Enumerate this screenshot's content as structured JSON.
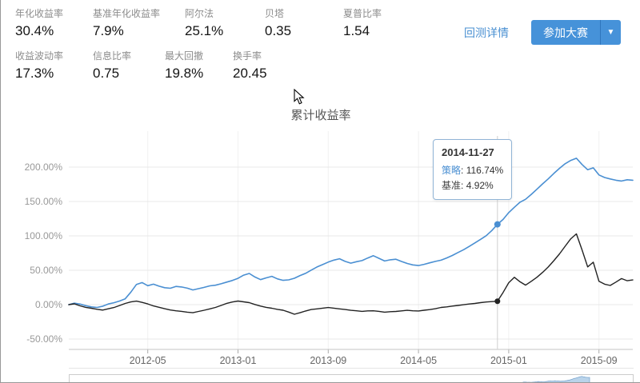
{
  "metrics": {
    "row1": [
      {
        "label": "年化收益率",
        "value": "30.4%"
      },
      {
        "label": "基准年化收益率",
        "value": "7.9%"
      },
      {
        "label": "阿尔法",
        "value": "25.1%"
      },
      {
        "label": "贝塔",
        "value": "0.35"
      },
      {
        "label": "夏普比率",
        "value": "1.54"
      }
    ],
    "row2": [
      {
        "label": "收益波动率",
        "value": "17.3%"
      },
      {
        "label": "信息比率",
        "value": "0.75"
      },
      {
        "label": "最大回撤",
        "value": "19.8%"
      },
      {
        "label": "换手率",
        "value": "20.45"
      }
    ]
  },
  "header": {
    "backtest_details_link": "回测详情",
    "join_competition_button": "参加大赛",
    "caret_icon": "▼"
  },
  "colors": {
    "strategy_blue": "#4a8fd2",
    "benchmark_black": "#222222",
    "accent_blue": "#4692d9",
    "link_blue": "#4a90d2"
  },
  "chart_data": {
    "type": "line",
    "title": "累计收益率",
    "grid": true,
    "legend_position": "none",
    "t_start": 0,
    "t_end": 50,
    "t_step": 0.5,
    "t_unit": "months-from-2011-10",
    "ylim": [
      -65,
      250
    ],
    "y_ticks": [
      {
        "label": "200.00%",
        "value": 200
      },
      {
        "label": "150.00%",
        "value": 150
      },
      {
        "label": "100.00%",
        "value": 100
      },
      {
        "label": "50.00%",
        "value": 50
      },
      {
        "label": "0.00%",
        "value": 0
      },
      {
        "label": "-50.00%",
        "value": -50
      }
    ],
    "x_ticks": [
      {
        "label": "2012-05",
        "t": 7
      },
      {
        "label": "2013-01",
        "t": 15
      },
      {
        "label": "2013-09",
        "t": 23
      },
      {
        "label": "2014-05",
        "t": 31
      },
      {
        "label": "2015-01",
        "t": 39
      },
      {
        "label": "2015-09",
        "t": 47
      }
    ],
    "series": [
      {
        "name": "策略",
        "color": "#4a8fd2",
        "width": 1.6,
        "values": [
          0,
          2.1,
          0.8,
          -1.5,
          -3.2,
          -4.1,
          -2.3,
          0.9,
          2.8,
          5.2,
          8.5,
          18.3,
          29.4,
          32.1,
          27.6,
          29.8,
          26.9,
          24.7,
          23.8,
          26.5,
          25.7,
          23.9,
          21.4,
          23.2,
          25.1,
          27.3,
          28.2,
          30.4,
          32.8,
          35.1,
          38.2,
          42.9,
          45.3,
          40.2,
          36.4,
          38.9,
          41.2,
          37.5,
          35.3,
          36.1,
          38.4,
          42.3,
          45.6,
          50.2,
          54.8,
          58.3,
          61.9,
          64.8,
          66.7,
          62.9,
          60.3,
          62.4,
          64.1,
          67.8,
          71.2,
          67.3,
          63.5,
          65.2,
          66.1,
          62.8,
          59.9,
          57.8,
          56.9,
          58.6,
          60.8,
          62.9,
          64.7,
          67.9,
          71.5,
          75.8,
          79.9,
          84.6,
          89.8,
          94.9,
          100.2,
          107.8,
          116.74,
          123.9,
          133.8,
          141.6,
          148.9,
          153.2,
          160.4,
          167.8,
          175.6,
          182.9,
          190.8,
          198.2,
          204.9,
          209.8,
          212.9,
          203.8,
          196.2,
          198.9,
          188.6,
          184.9,
          182.8,
          180.9,
          179.8,
          181.6,
          180.9
        ]
      },
      {
        "name": "基准",
        "color": "#222222",
        "width": 1.4,
        "values": [
          0,
          1.2,
          -1.8,
          -3.9,
          -5.2,
          -6.8,
          -7.9,
          -6.1,
          -4.2,
          -1.3,
          1.8,
          3.9,
          5.1,
          3.2,
          1.1,
          -1.9,
          -3.8,
          -5.9,
          -7.8,
          -8.9,
          -9.8,
          -10.9,
          -11.8,
          -9.9,
          -8.1,
          -6.2,
          -4.1,
          -1.2,
          1.9,
          3.8,
          5.2,
          4.1,
          2.9,
          0.2,
          -2.1,
          -3.9,
          -5.2,
          -6.9,
          -8.1,
          -10.8,
          -13.9,
          -11.8,
          -9.2,
          -7.1,
          -6.2,
          -5.1,
          -4.2,
          -5.1,
          -6.2,
          -7.1,
          -8.2,
          -8.9,
          -9.8,
          -9.1,
          -8.9,
          -9.8,
          -10.9,
          -10.2,
          -9.9,
          -9.1,
          -8.2,
          -8.9,
          -9.2,
          -8.1,
          -7.2,
          -5.9,
          -4.1,
          -3.2,
          -2.1,
          -1.2,
          -0.1,
          0.9,
          1.8,
          2.9,
          3.8,
          4.4,
          4.92,
          17.8,
          31.9,
          39.8,
          33.2,
          28.4,
          33.9,
          39.8,
          46.9,
          54.8,
          63.9,
          73.8,
          84.9,
          95.8,
          102.9,
          79.8,
          54.9,
          61.8,
          33.9,
          29.8,
          27.9,
          32.8,
          37.9,
          34.8,
          35.9
        ]
      }
    ],
    "tooltip": {
      "t": 38,
      "date": "2014-11-27",
      "items": [
        {
          "label": "策略",
          "value": "116.74%",
          "color": "#4a8fd2"
        },
        {
          "label": "基准",
          "value": "4.92%",
          "color": "#444444"
        }
      ]
    }
  }
}
